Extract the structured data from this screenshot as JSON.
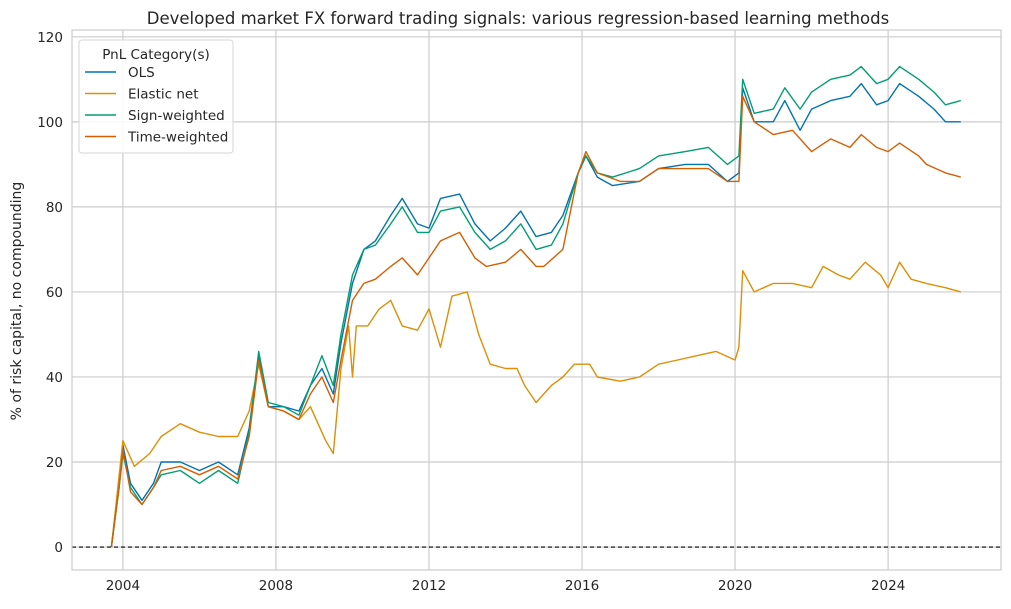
{
  "chart_data": {
    "type": "line",
    "title": "Developed market FX forward trading signals: various regression-based learning methods",
    "xlabel": "",
    "ylabel": "% of risk capital, no compounding",
    "xlim": [
      2002.67,
      2026.95
    ],
    "ylim": [
      -5.4,
      121.6
    ],
    "xticks": [
      2004,
      2008,
      2012,
      2016,
      2020,
      2024
    ],
    "yticks": [
      0,
      20,
      40,
      60,
      80,
      100,
      120
    ],
    "grid": true,
    "reference_line": {
      "y": 0,
      "style": "dashed",
      "color": "#000000"
    },
    "legend": {
      "title": "PnL Category(s)",
      "placement": "top-left"
    },
    "series": [
      {
        "name": "OLS",
        "color": "#0173b2",
        "x": [
          2003.7,
          2003.9,
          2004.0,
          2004.2,
          2004.5,
          2004.8,
          2005.0,
          2005.5,
          2006.0,
          2006.5,
          2007.0,
          2007.3,
          2007.55,
          2007.8,
          2008.2,
          2008.6,
          2008.9,
          2009.2,
          2009.5,
          2009.7,
          2010.0,
          2010.3,
          2010.6,
          2011.0,
          2011.3,
          2011.7,
          2012.0,
          2012.3,
          2012.8,
          2013.2,
          2013.6,
          2014.0,
          2014.4,
          2014.8,
          2015.2,
          2015.5,
          2015.9,
          2016.1,
          2016.4,
          2016.8,
          2017.5,
          2018.0,
          2018.7,
          2019.3,
          2019.8,
          2020.1,
          2020.2,
          2020.5,
          2021.0,
          2021.3,
          2021.7,
          2022.0,
          2022.5,
          2023.0,
          2023.3,
          2023.7,
          2024.0,
          2024.3,
          2024.8,
          2025.2,
          2025.5,
          2025.9
        ],
        "y": [
          0,
          15,
          24,
          15,
          11,
          15,
          20,
          20,
          18,
          20,
          17,
          28,
          45,
          33,
          33,
          32,
          38,
          42,
          36,
          48,
          62,
          70,
          72,
          78,
          82,
          76,
          75,
          82,
          83,
          76,
          72,
          75,
          79,
          73,
          74,
          78,
          88,
          92,
          87,
          85,
          86,
          89,
          90,
          90,
          86,
          88,
          108,
          100,
          100,
          105,
          98,
          103,
          105,
          106,
          109,
          104,
          105,
          109,
          106,
          103,
          100,
          100
        ]
      },
      {
        "name": "Elastic net",
        "color": "#de8f05",
        "x": [
          2003.7,
          2004.0,
          2004.3,
          2004.7,
          2005.0,
          2005.5,
          2006.0,
          2006.5,
          2007.0,
          2007.3,
          2007.55,
          2007.8,
          2008.2,
          2008.6,
          2008.9,
          2009.3,
          2009.5,
          2009.7,
          2009.9,
          2010.0,
          2010.1,
          2010.4,
          2010.7,
          2011.0,
          2011.3,
          2011.7,
          2012.0,
          2012.3,
          2012.6,
          2013.0,
          2013.3,
          2013.6,
          2014.0,
          2014.3,
          2014.5,
          2014.8,
          2015.2,
          2015.5,
          2015.8,
          2016.2,
          2016.4,
          2017.0,
          2017.5,
          2018.0,
          2018.5,
          2019.0,
          2019.5,
          2020.0,
          2020.1,
          2020.2,
          2020.5,
          2021.0,
          2021.5,
          2022.0,
          2022.3,
          2022.7,
          2023.0,
          2023.4,
          2023.8,
          2024.0,
          2024.3,
          2024.6,
          2025.0,
          2025.5,
          2025.9
        ],
        "y": [
          0,
          25,
          19,
          22,
          26,
          29,
          27,
          26,
          26,
          32,
          43,
          33,
          32,
          30,
          33,
          25,
          22,
          42,
          52,
          40,
          52,
          52,
          56,
          58,
          52,
          51,
          56,
          47,
          59,
          60,
          50,
          43,
          42,
          42,
          38,
          34,
          38,
          40,
          43,
          43,
          40,
          39,
          40,
          43,
          44,
          45,
          46,
          44,
          47,
          65,
          60,
          62,
          62,
          61,
          66,
          64,
          63,
          67,
          64,
          61,
          67,
          63,
          62,
          61,
          60
        ]
      },
      {
        "name": "Sign-weighted",
        "color": "#029e73",
        "x": [
          2003.7,
          2003.9,
          2004.0,
          2004.2,
          2004.5,
          2004.8,
          2005.0,
          2005.5,
          2006.0,
          2006.5,
          2007.0,
          2007.3,
          2007.55,
          2007.8,
          2008.2,
          2008.6,
          2008.9,
          2009.2,
          2009.5,
          2009.7,
          2010.0,
          2010.3,
          2010.6,
          2011.0,
          2011.3,
          2011.7,
          2012.0,
          2012.3,
          2012.8,
          2013.2,
          2013.6,
          2014.0,
          2014.4,
          2014.8,
          2015.2,
          2015.5,
          2015.9,
          2016.1,
          2016.4,
          2016.8,
          2017.5,
          2018.0,
          2018.7,
          2019.3,
          2019.8,
          2020.1,
          2020.2,
          2020.5,
          2021.0,
          2021.3,
          2021.7,
          2022.0,
          2022.5,
          2023.0,
          2023.3,
          2023.7,
          2024.0,
          2024.3,
          2024.8,
          2025.2,
          2025.5,
          2025.9
        ],
        "y": [
          0,
          14,
          22,
          14,
          10,
          14,
          17,
          18,
          15,
          18,
          15,
          27,
          46,
          34,
          33,
          31,
          38,
          45,
          38,
          50,
          64,
          70,
          71,
          76,
          80,
          74,
          74,
          79,
          80,
          74,
          70,
          72,
          76,
          70,
          71,
          76,
          88,
          92,
          88,
          87,
          89,
          92,
          93,
          94,
          90,
          92,
          110,
          102,
          103,
          108,
          103,
          107,
          110,
          111,
          113,
          109,
          110,
          113,
          110,
          107,
          104,
          105
        ]
      },
      {
        "name": "Time-weighted",
        "color": "#d55e00",
        "x": [
          2003.7,
          2003.9,
          2004.0,
          2004.2,
          2004.5,
          2004.8,
          2005.0,
          2005.5,
          2006.0,
          2006.5,
          2007.0,
          2007.3,
          2007.55,
          2007.8,
          2008.2,
          2008.6,
          2008.9,
          2009.2,
          2009.5,
          2009.7,
          2010.0,
          2010.3,
          2010.6,
          2011.0,
          2011.3,
          2011.7,
          2012.0,
          2012.3,
          2012.8,
          2013.2,
          2013.5,
          2014.0,
          2014.4,
          2014.8,
          2015.0,
          2015.5,
          2015.9,
          2016.1,
          2016.4,
          2017.0,
          2017.5,
          2018.0,
          2018.7,
          2019.3,
          2019.8,
          2020.1,
          2020.2,
          2020.5,
          2021.0,
          2021.5,
          2022.0,
          2022.5,
          2023.0,
          2023.3,
          2023.7,
          2024.0,
          2024.3,
          2024.8,
          2025.0,
          2025.5,
          2025.9
        ],
        "y": [
          0,
          14,
          23,
          13,
          10,
          14,
          18,
          19,
          17,
          19,
          16,
          26,
          44,
          33,
          32,
          30,
          36,
          40,
          34,
          44,
          58,
          62,
          63,
          66,
          68,
          64,
          68,
          72,
          74,
          68,
          66,
          67,
          70,
          66,
          66,
          70,
          88,
          93,
          88,
          86,
          86,
          89,
          89,
          89,
          86,
          86,
          106,
          100,
          97,
          98,
          93,
          96,
          94,
          97,
          94,
          93,
          95,
          92,
          90,
          88,
          87
        ]
      }
    ]
  }
}
